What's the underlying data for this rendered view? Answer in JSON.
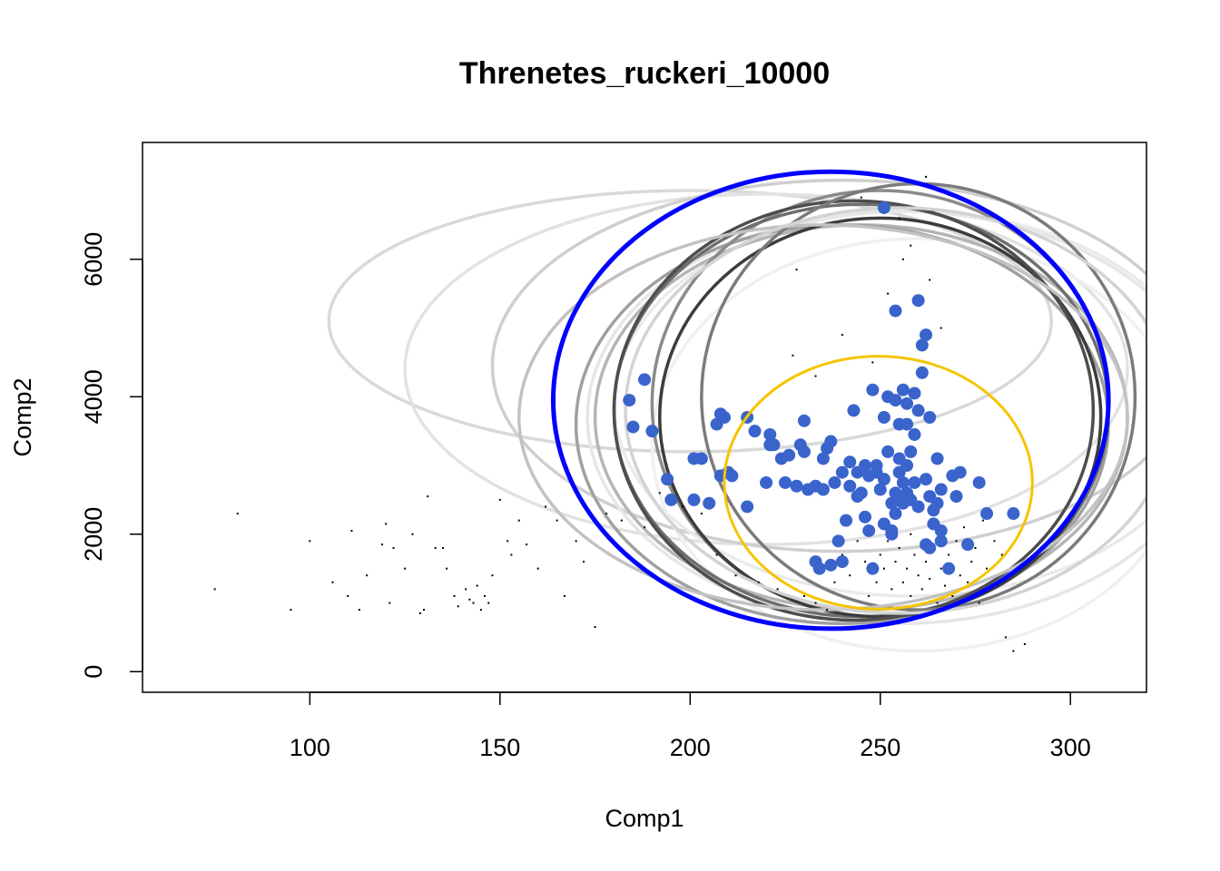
{
  "chart_data": {
    "type": "scatter",
    "title": "Threnetes_ruckeri_10000",
    "xlabel": "Comp1",
    "ylabel": "Comp2",
    "xlim": [
      56,
      320
    ],
    "ylim": [
      -300,
      7700
    ],
    "xticks": [
      "100",
      "150",
      "200",
      "250",
      "300"
    ],
    "xtick_values": [
      100,
      150,
      200,
      250,
      300
    ],
    "yticks": [
      "0",
      "2000",
      "4000",
      "6000"
    ],
    "ytick_values": [
      0,
      2000,
      4000,
      6000
    ],
    "grid": false,
    "legend": "none",
    "colors": {
      "points": "#3a64cc",
      "main_ellipse": "#0000ff",
      "yellow_ellipse": "#f5c400",
      "background_dots": "#000000"
    },
    "ellipses": [
      {
        "role": "grey",
        "color": "#d9d9d9",
        "cx": 200,
        "cy": 5100,
        "rx": 95,
        "ry": 1900
      },
      {
        "role": "grey",
        "color": "#e2e2e2",
        "cx": 220,
        "cy": 4400,
        "rx": 95,
        "ry": 2550
      },
      {
        "role": "grey",
        "color": "#cfcfcf",
        "cx": 240,
        "cy": 4450,
        "rx": 92,
        "ry": 2700
      },
      {
        "role": "grey",
        "color": "#eaeaea",
        "cx": 258,
        "cy": 3900,
        "rx": 78,
        "ry": 2800
      },
      {
        "role": "grey",
        "color": "#e6e6e6",
        "cx": 255,
        "cy": 3700,
        "rx": 82,
        "ry": 3000
      },
      {
        "role": "grey",
        "color": "#f0f0f0",
        "cx": 260,
        "cy": 3300,
        "rx": 70,
        "ry": 3000
      },
      {
        "role": "grey",
        "color": "#b5b5b5",
        "cx": 245,
        "cy": 3700,
        "rx": 70,
        "ry": 2800
      },
      {
        "role": "grey",
        "color": "#a0a0a0",
        "cx": 240,
        "cy": 3600,
        "rx": 70,
        "ry": 2900
      },
      {
        "role": "grey",
        "color": "#8a8a8a",
        "cx": 250,
        "cy": 3900,
        "rx": 60,
        "ry": 3100
      },
      {
        "role": "grey",
        "color": "#6e6e6e",
        "cx": 245,
        "cy": 3800,
        "rx": 65,
        "ry": 3000
      },
      {
        "role": "grey",
        "color": "#3c3c3c",
        "cx": 250,
        "cy": 3700,
        "rx": 58,
        "ry": 2900
      },
      {
        "role": "grey",
        "color": "#4d4d4d",
        "cx": 243,
        "cy": 3800,
        "rx": 63,
        "ry": 3050
      },
      {
        "role": "grey",
        "color": "#7b7b7b",
        "cx": 260,
        "cy": 4000,
        "rx": 57,
        "ry": 3100
      },
      {
        "role": "grey",
        "color": "#c2c2c2",
        "cx": 235,
        "cy": 3700,
        "rx": 80,
        "ry": 2800
      },
      {
        "role": "grey",
        "color": "#d3d3d3",
        "cx": 255,
        "cy": 3800,
        "rx": 72,
        "ry": 2950
      },
      {
        "role": "main",
        "color": "#0000ff",
        "cx": 237,
        "cy": 3950,
        "rx": 73,
        "ry": 3325
      },
      {
        "role": "yellow",
        "color": "#f5c400",
        "cx": 249.5,
        "cy": 2750,
        "rx": 40.5,
        "ry": 1840
      }
    ],
    "series": [
      {
        "points": [
          [
            184,
            3950
          ],
          [
            185,
            3560
          ],
          [
            188,
            4250
          ],
          [
            190,
            3500
          ],
          [
            194,
            2800
          ],
          [
            195,
            2500
          ],
          [
            201,
            3100
          ],
          [
            201,
            2500
          ],
          [
            203,
            3100
          ],
          [
            205,
            2450
          ],
          [
            207,
            3600
          ],
          [
            208,
            3750
          ],
          [
            208,
            2850
          ],
          [
            209,
            3700
          ],
          [
            210,
            2900
          ],
          [
            211,
            2850
          ],
          [
            215,
            3700
          ],
          [
            215,
            2400
          ],
          [
            217,
            3500
          ],
          [
            220,
            2750
          ],
          [
            221,
            3300
          ],
          [
            221,
            3450
          ],
          [
            222,
            3300
          ],
          [
            224,
            3100
          ],
          [
            225,
            2750
          ],
          [
            226,
            3150
          ],
          [
            228,
            2700
          ],
          [
            229,
            3300
          ],
          [
            230,
            3200
          ],
          [
            230,
            3650
          ],
          [
            231,
            2650
          ],
          [
            233,
            2700
          ],
          [
            233,
            1600
          ],
          [
            234,
            1500
          ],
          [
            235,
            3100
          ],
          [
            235,
            2650
          ],
          [
            236,
            3250
          ],
          [
            237,
            3350
          ],
          [
            237,
            1550
          ],
          [
            238,
            2750
          ],
          [
            239,
            1900
          ],
          [
            240,
            2900
          ],
          [
            240,
            1600
          ],
          [
            241,
            2200
          ],
          [
            242,
            2700
          ],
          [
            242,
            3050
          ],
          [
            243,
            3800
          ],
          [
            244,
            2550
          ],
          [
            244,
            2900
          ],
          [
            245,
            2600
          ],
          [
            246,
            3000
          ],
          [
            246,
            2250
          ],
          [
            247,
            2850
          ],
          [
            247,
            2050
          ],
          [
            248,
            4100
          ],
          [
            248,
            1500
          ],
          [
            249,
            2900
          ],
          [
            249,
            3000
          ],
          [
            250,
            2650
          ],
          [
            251,
            2800
          ],
          [
            251,
            2150
          ],
          [
            251,
            3700
          ],
          [
            252,
            4000
          ],
          [
            252,
            3200
          ],
          [
            253,
            2050
          ],
          [
            253,
            2450
          ],
          [
            253,
            2000
          ],
          [
            254,
            3950
          ],
          [
            254,
            2600
          ],
          [
            254,
            2300
          ],
          [
            255,
            3600
          ],
          [
            255,
            2550
          ],
          [
            255,
            2900
          ],
          [
            255,
            3100
          ],
          [
            256,
            4100
          ],
          [
            256,
            2750
          ],
          [
            256,
            2450
          ],
          [
            257,
            3600
          ],
          [
            257,
            3900
          ],
          [
            257,
            3000
          ],
          [
            257,
            2600
          ],
          [
            258,
            3200
          ],
          [
            258,
            2500
          ],
          [
            259,
            3450
          ],
          [
            259,
            2750
          ],
          [
            259,
            4050
          ],
          [
            260,
            3800
          ],
          [
            260,
            2400
          ],
          [
            260,
            5400
          ],
          [
            261,
            4750
          ],
          [
            261,
            4350
          ],
          [
            262,
            4900
          ],
          [
            262,
            2800
          ],
          [
            262,
            1850
          ],
          [
            263,
            3700
          ],
          [
            263,
            2550
          ],
          [
            263,
            1800
          ],
          [
            264,
            2150
          ],
          [
            264,
            2350
          ],
          [
            265,
            3100
          ],
          [
            265,
            2450
          ],
          [
            266,
            2650
          ],
          [
            266,
            2050
          ],
          [
            266,
            1900
          ],
          [
            268,
            1500
          ],
          [
            269,
            2850
          ],
          [
            270,
            2550
          ],
          [
            271,
            2900
          ],
          [
            273,
            1850
          ],
          [
            276,
            2750
          ],
          [
            278,
            2300
          ],
          [
            285,
            2300
          ],
          [
            254,
            5250
          ],
          [
            251,
            6750
          ]
        ]
      }
    ],
    "background_dots": [
      [
        75,
        1200
      ],
      [
        81,
        2300
      ],
      [
        95,
        900
      ],
      [
        100,
        1900
      ],
      [
        106,
        1300
      ],
      [
        110,
        1100
      ],
      [
        111,
        2050
      ],
      [
        113,
        900
      ],
      [
        115,
        1400
      ],
      [
        119,
        1850
      ],
      [
        120,
        2150
      ],
      [
        121,
        1000
      ],
      [
        122,
        1800
      ],
      [
        125,
        1500
      ],
      [
        127,
        2000
      ],
      [
        129,
        850
      ],
      [
        130,
        900
      ],
      [
        131,
        2550
      ],
      [
        133,
        1800
      ],
      [
        135,
        1800
      ],
      [
        136,
        1500
      ],
      [
        138,
        1100
      ],
      [
        139,
        950
      ],
      [
        141,
        1200
      ],
      [
        142,
        1050
      ],
      [
        143,
        1000
      ],
      [
        144,
        1250
      ],
      [
        145,
        900
      ],
      [
        146,
        1100
      ],
      [
        147,
        1000
      ],
      [
        148,
        1400
      ],
      [
        150,
        2500
      ],
      [
        152,
        1900
      ],
      [
        153,
        1700
      ],
      [
        155,
        2200
      ],
      [
        157,
        1850
      ],
      [
        160,
        1500
      ],
      [
        162,
        2400
      ],
      [
        165,
        2200
      ],
      [
        167,
        1100
      ],
      [
        170,
        1900
      ],
      [
        172,
        1600
      ],
      [
        175,
        650
      ],
      [
        178,
        2300
      ],
      [
        182,
        2200
      ],
      [
        188,
        2100
      ],
      [
        192,
        2600
      ],
      [
        198,
        2400
      ],
      [
        203,
        2300
      ],
      [
        207,
        1700
      ],
      [
        212,
        1400
      ],
      [
        218,
        1300
      ],
      [
        223,
        1200
      ],
      [
        228,
        5850
      ],
      [
        230,
        1100
      ],
      [
        233,
        1000
      ],
      [
        236,
        900
      ],
      [
        238,
        1300
      ],
      [
        240,
        1700
      ],
      [
        242,
        1400
      ],
      [
        244,
        1900
      ],
      [
        246,
        1600
      ],
      [
        247,
        1100
      ],
      [
        248,
        2000
      ],
      [
        249,
        1300
      ],
      [
        250,
        1700
      ],
      [
        251,
        1500
      ],
      [
        252,
        1900
      ],
      [
        253,
        1200
      ],
      [
        254,
        1600
      ],
      [
        255,
        1800
      ],
      [
        256,
        1300
      ],
      [
        257,
        1500
      ],
      [
        258,
        1100
      ],
      [
        258,
        2000
      ],
      [
        259,
        1700
      ],
      [
        260,
        1400
      ],
      [
        261,
        1200
      ],
      [
        262,
        1600
      ],
      [
        263,
        1350
      ],
      [
        264,
        1800
      ],
      [
        265,
        1000
      ],
      [
        266,
        1500
      ],
      [
        267,
        1250
      ],
      [
        268,
        1700
      ],
      [
        269,
        1100
      ],
      [
        270,
        1900
      ],
      [
        271,
        1400
      ],
      [
        272,
        2100
      ],
      [
        273,
        1300
      ],
      [
        274,
        1600
      ],
      [
        275,
        1800
      ],
      [
        276,
        1000
      ],
      [
        277,
        2200
      ],
      [
        278,
        1500
      ],
      [
        280,
        1900
      ],
      [
        282,
        1700
      ],
      [
        283,
        500
      ],
      [
        285,
        300
      ],
      [
        288,
        400
      ],
      [
        262,
        7200
      ],
      [
        255,
        6600
      ],
      [
        245,
        6900
      ],
      [
        258,
        6200
      ],
      [
        263,
        5700
      ],
      [
        266,
        5000
      ],
      [
        240,
        4900
      ],
      [
        248,
        4500
      ],
      [
        233,
        4300
      ],
      [
        227,
        4600
      ],
      [
        252,
        5500
      ],
      [
        256,
        6000
      ]
    ]
  }
}
